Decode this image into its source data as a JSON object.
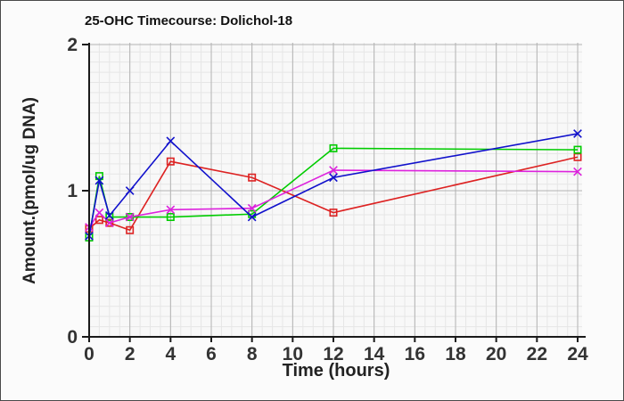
{
  "window": {
    "background": "#fbfbfb",
    "border_color": "#4a4a4a"
  },
  "chart_data": {
    "type": "line",
    "title": "25-OHC Timecourse: Dolichol-18",
    "xlabel": "Time (hours)",
    "ylabel": "Amount.(pmol/ug DNA)",
    "x": [
      0,
      0.5,
      1,
      2,
      4,
      8,
      12,
      24
    ],
    "series": [
      {
        "name": "red-squares",
        "color": "#dd2222",
        "marker": "square",
        "values": [
          0.74,
          0.8,
          0.78,
          0.73,
          1.2,
          1.09,
          0.85,
          1.23
        ]
      },
      {
        "name": "green-squares",
        "color": "#00cc00",
        "marker": "square",
        "values": [
          0.68,
          1.1,
          0.82,
          0.82,
          0.82,
          0.84,
          1.29,
          1.28
        ]
      },
      {
        "name": "magenta-crosses",
        "color": "#dd22dd",
        "marker": "x",
        "values": [
          0.75,
          0.85,
          0.78,
          0.82,
          0.87,
          0.88,
          1.14,
          1.13
        ]
      },
      {
        "name": "blue-crosses",
        "color": "#1111cc",
        "marker": "x",
        "values": [
          0.69,
          1.07,
          0.83,
          1.0,
          1.34,
          0.82,
          1.09,
          1.39
        ]
      }
    ],
    "xticks": [
      0,
      2,
      4,
      6,
      8,
      10,
      12,
      14,
      16,
      18,
      20,
      22,
      24
    ],
    "yticks": [
      0,
      1,
      2
    ],
    "xlim": [
      0,
      24.3
    ],
    "ylim": [
      0,
      2
    ],
    "grid": {
      "minor_square_grid": true,
      "major_x_interval_hours": 2,
      "major_y_interval": 1
    },
    "legend": "none",
    "axis_color": "#1a1a1a",
    "tick_label_color": "#333333",
    "plot_bg": "#f8f8f8",
    "grid_minor_color": "#e6e6e6",
    "grid_major_color": "#b3b3b3"
  }
}
